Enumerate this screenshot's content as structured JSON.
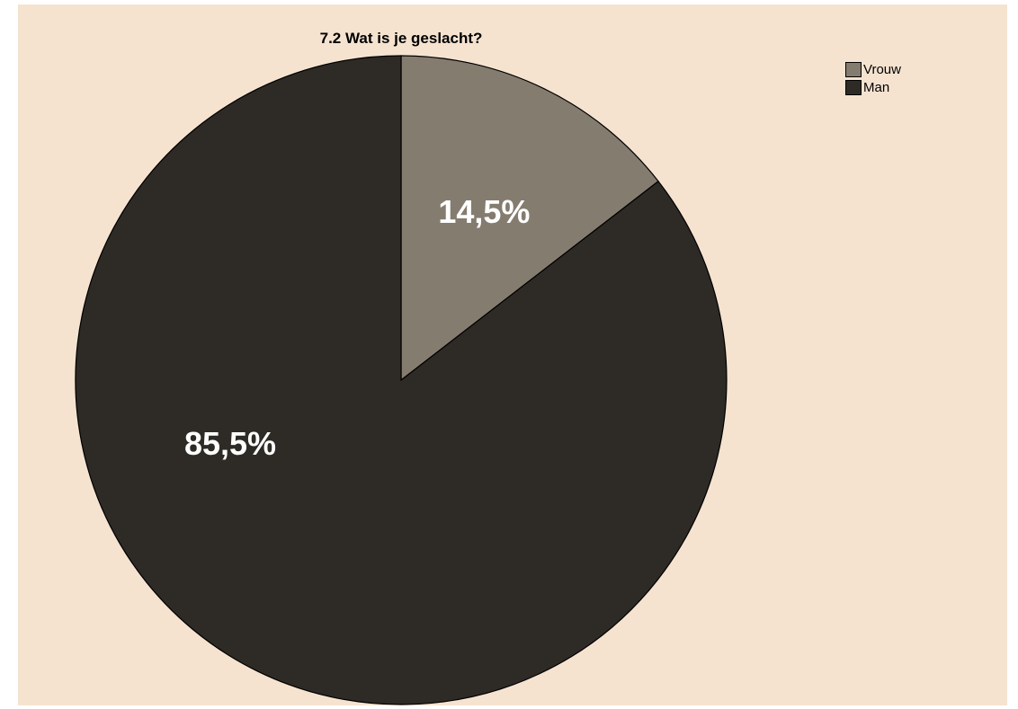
{
  "chart_data": {
    "type": "pie",
    "title": "7.2 Wat is je geslacht?",
    "categories": [
      "Vrouw",
      "Man"
    ],
    "values": [
      14.5,
      85.5
    ],
    "labels": [
      "14,5%",
      "85,5%"
    ],
    "colors": [
      "#857c70",
      "#2e2a25"
    ],
    "legend": {
      "placement": "top-right",
      "entries": [
        "Vrouw",
        "Man"
      ]
    }
  }
}
